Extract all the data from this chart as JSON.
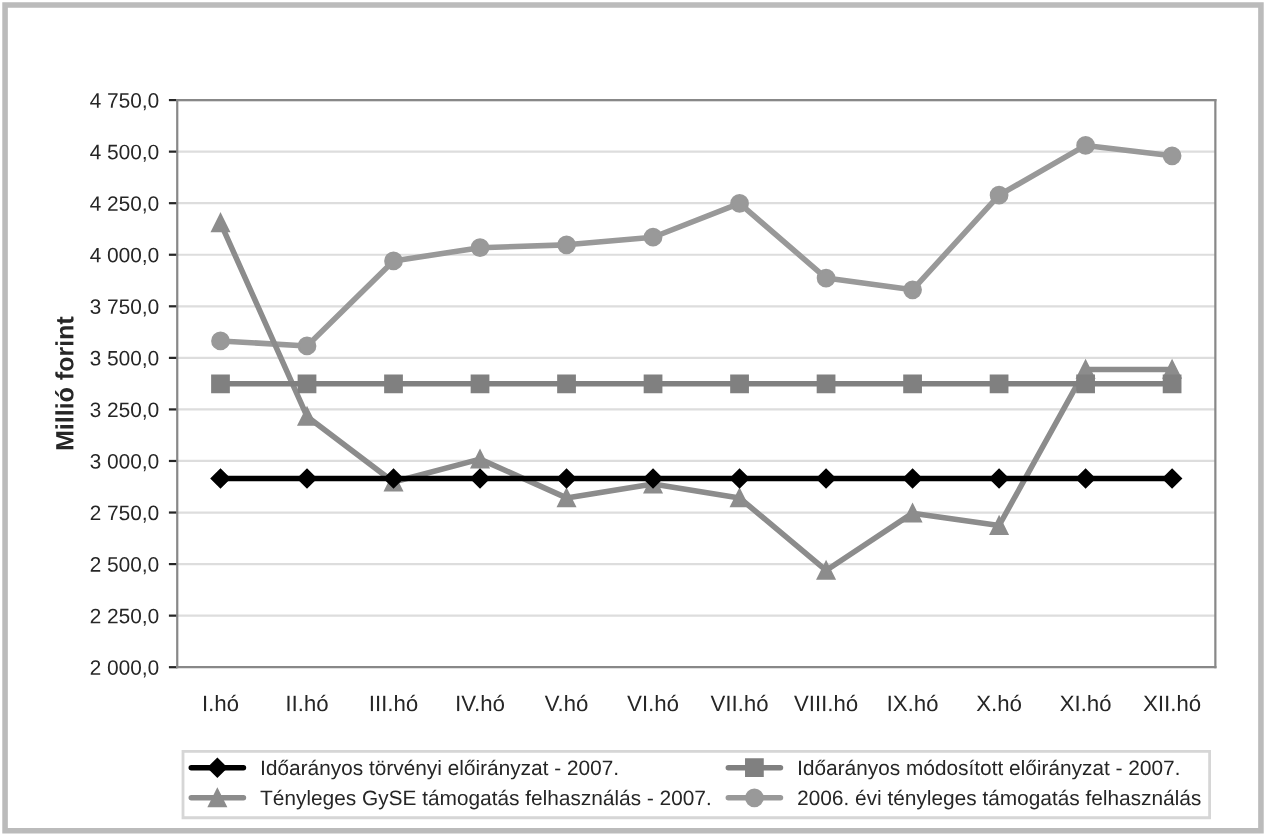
{
  "chart_data": {
    "type": "line",
    "ylabel": "Millió forint",
    "categories": [
      "I.hó",
      "II.hó",
      "III.hó",
      "IV.hó",
      "V.hó",
      "VI.hó",
      "VII.hó",
      "VIII.hó",
      "IX.hó",
      "X.hó",
      "XI.hó",
      "XII.hó"
    ],
    "series": [
      {
        "name": "Időarányos törvényi előirányzat - 2007.",
        "color": "#000000",
        "marker": "diamond",
        "values": [
          2915,
          2915,
          2915,
          2915,
          2915,
          2915,
          2915,
          2915,
          2915,
          2915,
          2915,
          2915
        ]
      },
      {
        "name": "Időarányos módosított előirányzat - 2007.",
        "color": "#808080",
        "marker": "square",
        "values": [
          3374,
          3374,
          3374,
          3374,
          3374,
          3374,
          3374,
          3374,
          3374,
          3374,
          3374,
          3374
        ]
      },
      {
        "name": "Tényleges GySE támogatás felhasználás - 2007.",
        "color": "#8c8c8c",
        "marker": "triangle",
        "values": [
          4155,
          3216,
          2898,
          3009,
          2821,
          2888,
          2821,
          2469,
          2747,
          2687,
          3444,
          3444
        ]
      },
      {
        "name": "2006. évi tényleges támogatás felhasználás",
        "color": "#999999",
        "marker": "circle",
        "values": [
          3582,
          3558,
          3970,
          4034,
          4048,
          4085,
          4249,
          3887,
          3830,
          4289,
          4530,
          4480
        ]
      }
    ],
    "ylim": [
      2000,
      4750
    ],
    "yticks": [
      {
        "value": 2000,
        "label": "2 000,0"
      },
      {
        "value": 2250,
        "label": "2 250,0"
      },
      {
        "value": 2500,
        "label": "2 500,0"
      },
      {
        "value": 2750,
        "label": "2 750,0"
      },
      {
        "value": 3000,
        "label": "3 000,0"
      },
      {
        "value": 3250,
        "label": "3 250,0"
      },
      {
        "value": 3500,
        "label": "3 500,0"
      },
      {
        "value": 3750,
        "label": "3 750,0"
      },
      {
        "value": 4000,
        "label": "4 000,0"
      },
      {
        "value": 4250,
        "label": "4 250,0"
      },
      {
        "value": 4500,
        "label": "4 500,0"
      },
      {
        "value": 4750,
        "label": "4 750,0"
      }
    ],
    "grid": "y",
    "legend": "bottom",
    "line_style": "solid"
  }
}
